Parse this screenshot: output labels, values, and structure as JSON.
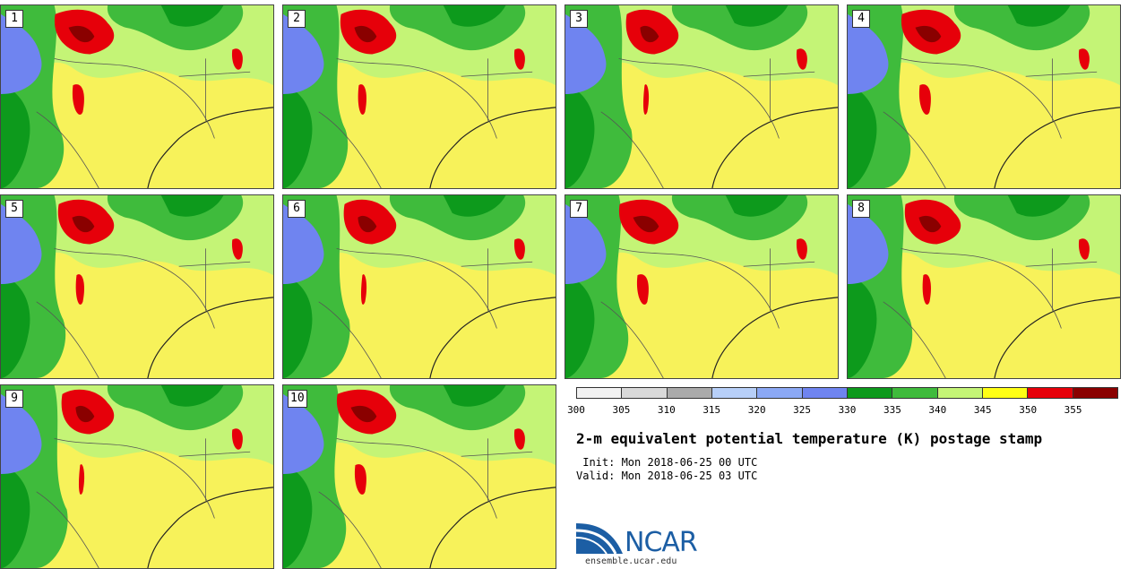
{
  "panels": [
    {
      "label": "1"
    },
    {
      "label": "2"
    },
    {
      "label": "3"
    },
    {
      "label": "4"
    },
    {
      "label": "5"
    },
    {
      "label": "6"
    },
    {
      "label": "7"
    },
    {
      "label": "8"
    },
    {
      "label": "9"
    },
    {
      "label": "10"
    }
  ],
  "colorbar": {
    "colors": [
      "#f2f2f2",
      "#d9d9d9",
      "#aaaaaa",
      "#b7cff8",
      "#8ba8f4",
      "#6f84f0",
      "#0d9a1c",
      "#3fbb3c",
      "#c4f476",
      "#ffff14",
      "#e6000a",
      "#8a0000"
    ],
    "ticks": [
      "300",
      "305",
      "310",
      "315",
      "320",
      "325",
      "330",
      "335",
      "340",
      "345",
      "350",
      "355"
    ]
  },
  "title": "2-m equivalent potential temperature (K) postage stamp",
  "init": " Init: Mon 2018-06-25 00 UTC",
  "valid": "Valid: Mon 2018-06-25 03 UTC",
  "logo": {
    "text": "NCAR",
    "url": "ensemble.ucar.edu"
  }
}
